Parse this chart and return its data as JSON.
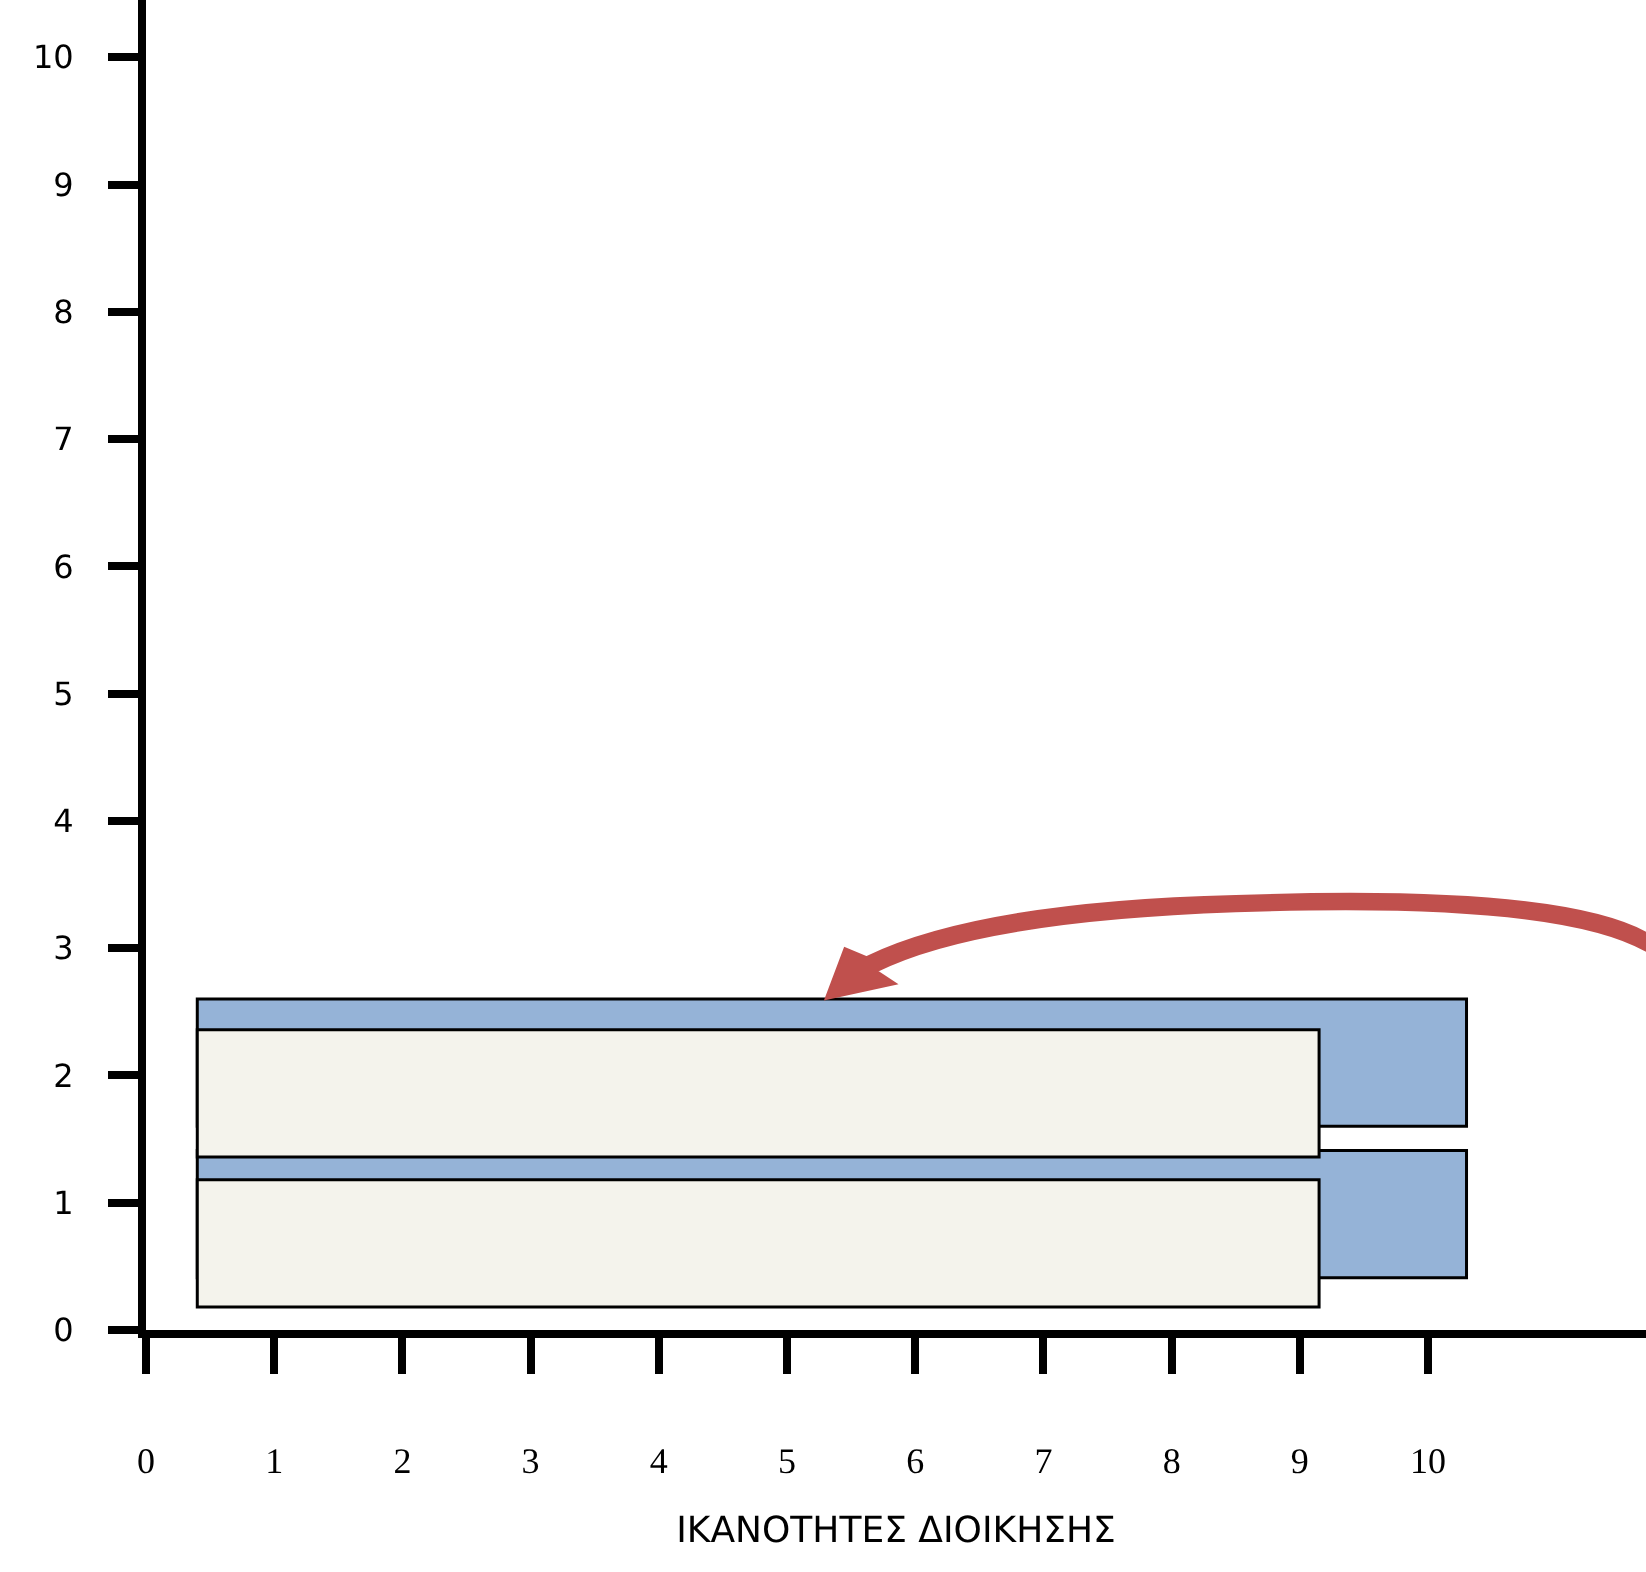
{
  "chart_data": {
    "type": "bar",
    "orientation": "horizontal",
    "xlabel": "ΙΚΑΝΟΤΗΤΕΣ ΔΙΟΙΚΗΣΗΣ",
    "xlim": [
      0,
      11.7
    ],
    "xticks": [
      0,
      1,
      2,
      3,
      4,
      5,
      6,
      7,
      8,
      9,
      10
    ],
    "ylim": [
      0,
      10.45
    ],
    "yticks": [
      0,
      1,
      2,
      3,
      4,
      5,
      6,
      7,
      8,
      9,
      10
    ],
    "series": [
      {
        "color": "#95b3d7",
        "x": [
          2.1,
          0.91
        ],
        "base": [
          0.4,
          0.4
        ],
        "values": [
          9.9,
          9.9
        ]
      },
      {
        "color": "#f4f3ec",
        "x": [
          1.86,
          0.68
        ],
        "base": [
          0.4,
          0.4
        ],
        "values": [
          8.75,
          8.75
        ]
      }
    ]
  }
}
